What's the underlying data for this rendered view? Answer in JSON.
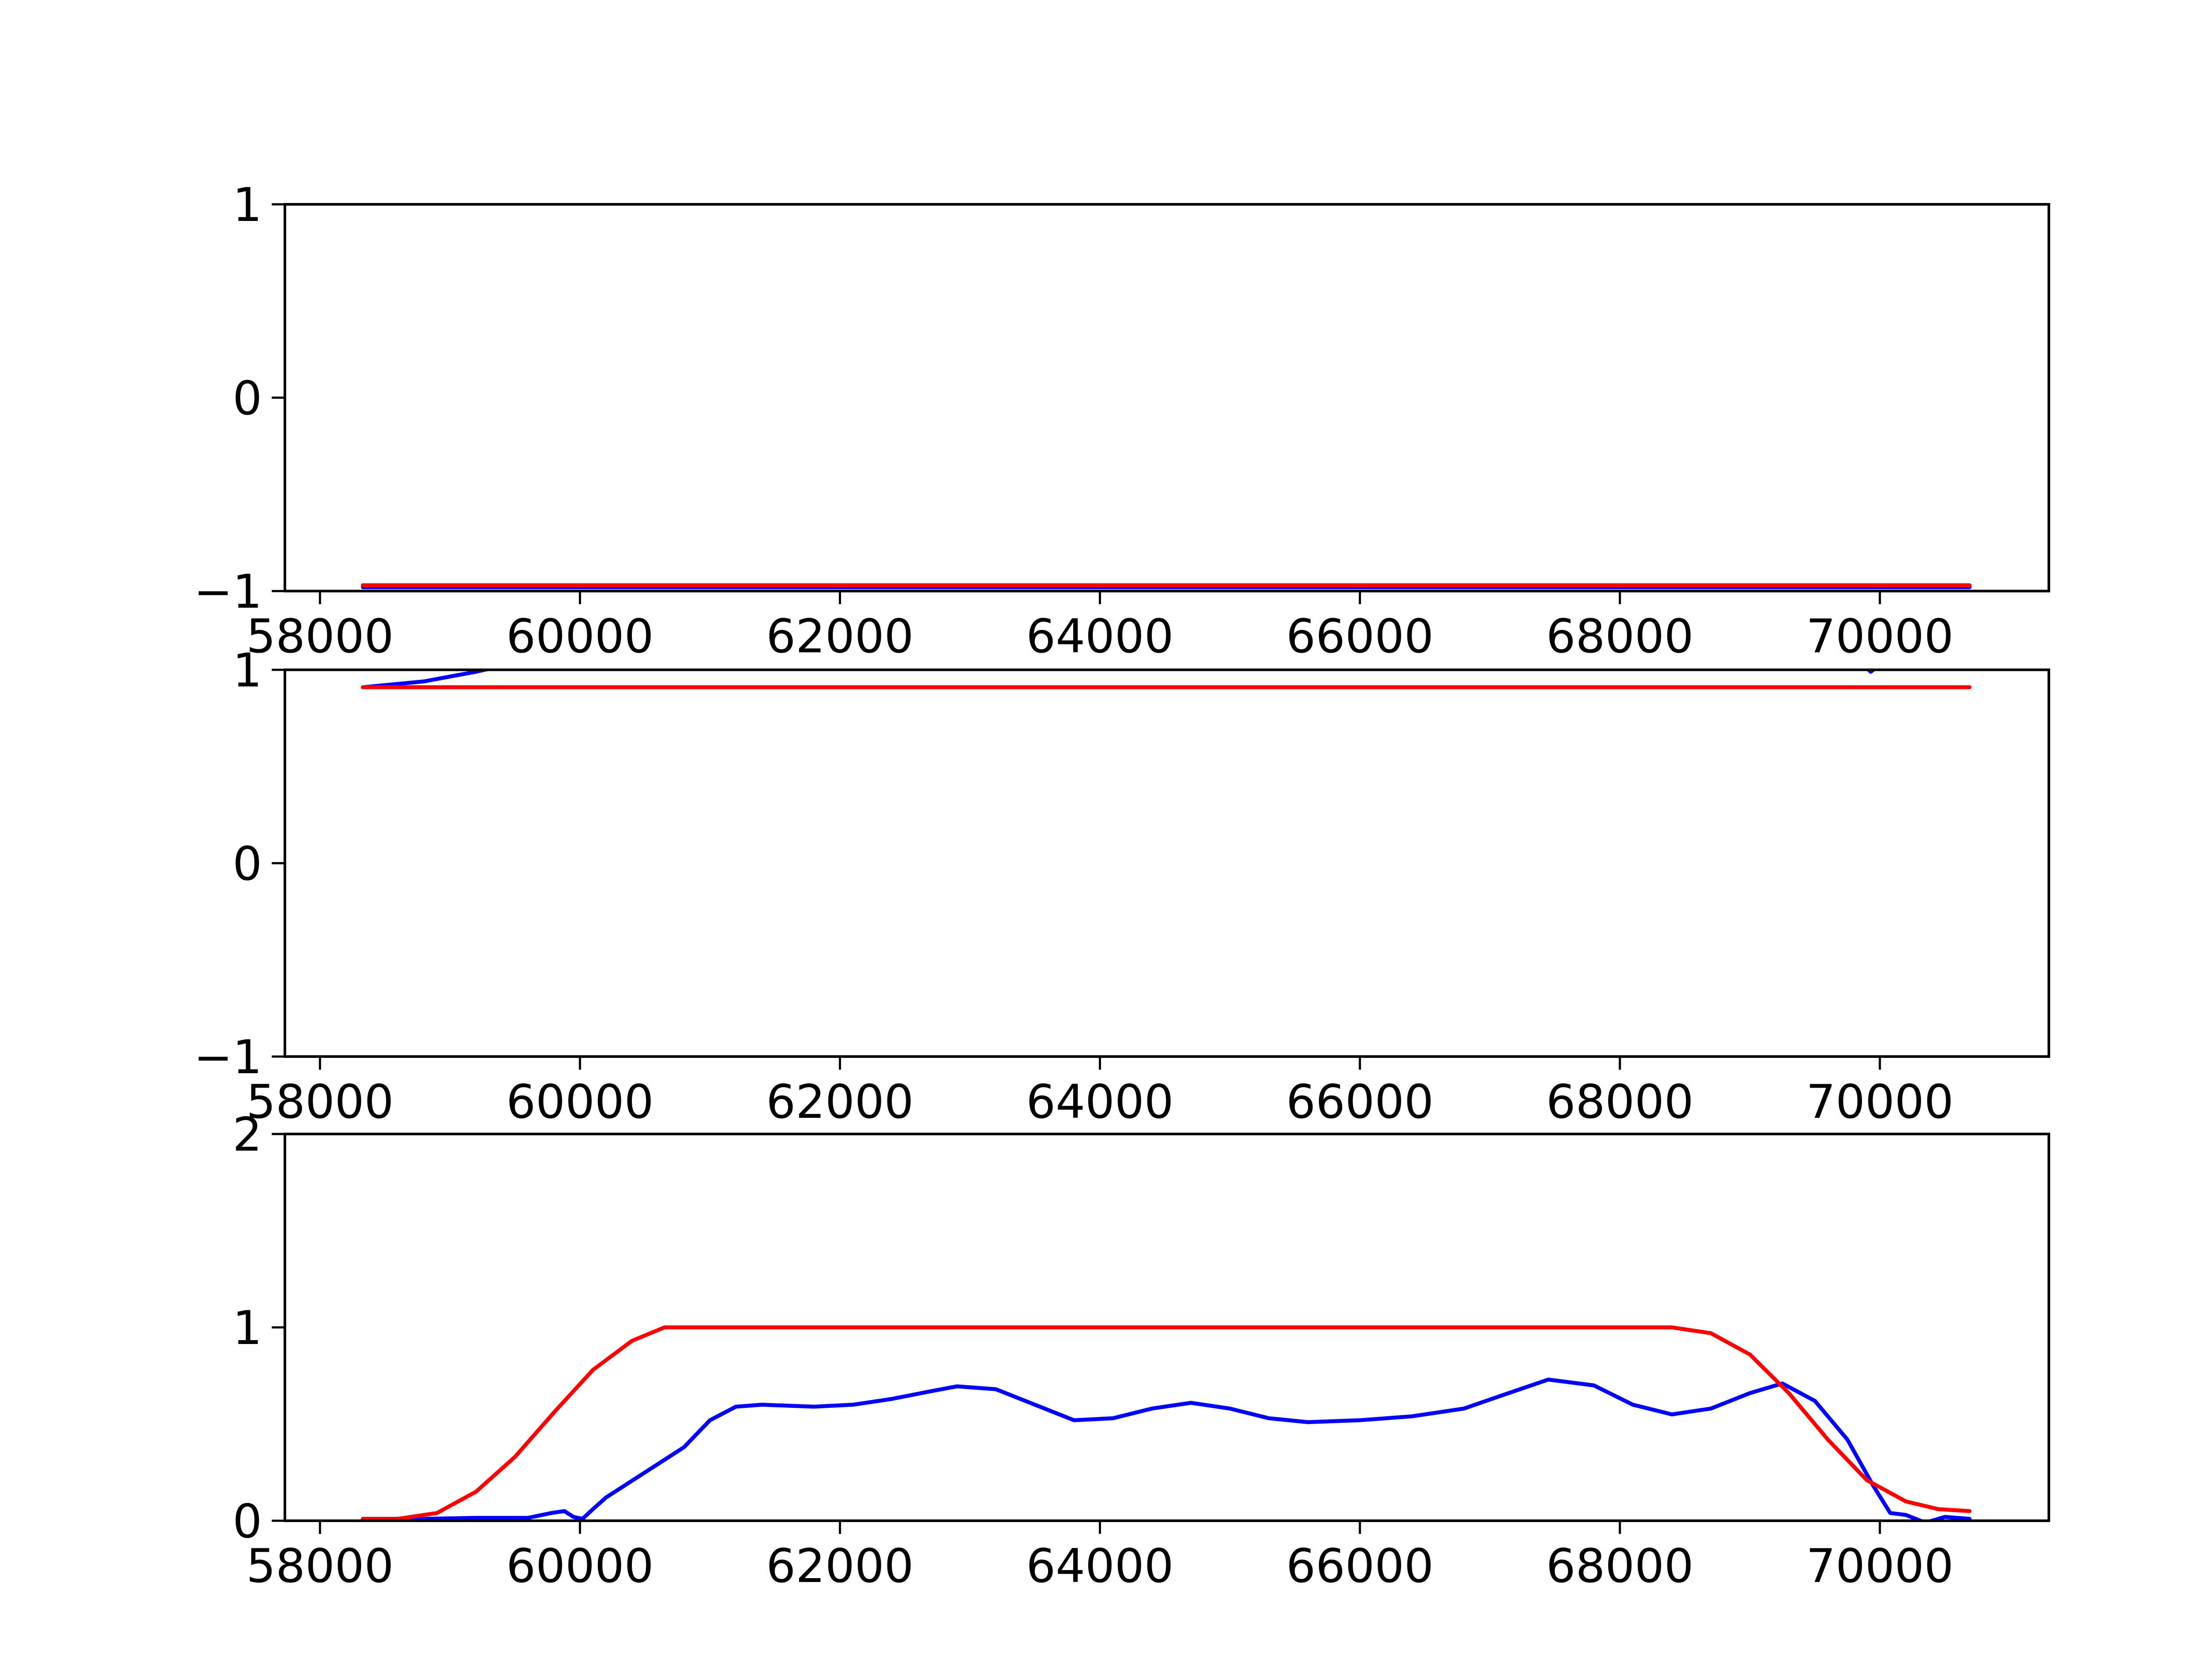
{
  "chart_data": [
    {
      "type": "line",
      "xlim": [
        57730,
        71300
      ],
      "ylim": [
        -1,
        1
      ],
      "xticks": [
        58000,
        60000,
        62000,
        64000,
        66000,
        68000,
        70000
      ],
      "xtick_labels": [
        "58000",
        "60000",
        "62000",
        "64000",
        "66000",
        "68000",
        "70000"
      ],
      "yticks": [
        -1,
        0,
        1
      ],
      "ytick_labels": [
        "−1",
        "0",
        "1"
      ],
      "grid": false,
      "series": [
        {
          "color": "#0000ff",
          "points": [
            [
              58330,
              -0.98
            ],
            [
              58700,
              -0.98
            ],
            [
              59100,
              -0.98
            ],
            [
              70690,
              -0.98
            ]
          ]
        },
        {
          "color": "#ff0000",
          "points": [
            [
              58330,
              -0.97
            ],
            [
              70690,
              -0.97
            ]
          ]
        }
      ]
    },
    {
      "type": "line",
      "xlim": [
        57730,
        71300
      ],
      "ylim": [
        -1,
        1
      ],
      "xticks": [
        58000,
        60000,
        62000,
        64000,
        66000,
        68000,
        70000
      ],
      "xtick_labels": [
        "58000",
        "60000",
        "62000",
        "64000",
        "66000",
        "68000",
        "70000"
      ],
      "yticks": [
        -1,
        0,
        1
      ],
      "ytick_labels": [
        "−1",
        "0",
        "1"
      ],
      "grid": false,
      "series": [
        {
          "color": "#0000ff",
          "points": [
            [
              58330,
              0.91
            ],
            [
              58800,
              0.94
            ],
            [
              59200,
              0.99
            ],
            [
              59400,
              1.02
            ]
          ]
        },
        {
          "color": "#0000ff",
          "points": [
            [
              69880,
              1.02
            ],
            [
              69930,
              0.99
            ],
            [
              69990,
              1.02
            ]
          ]
        },
        {
          "color": "#ff0000",
          "points": [
            [
              58330,
              0.91
            ],
            [
              70690,
              0.91
            ]
          ]
        }
      ]
    },
    {
      "type": "line",
      "xlim": [
        57730,
        71300
      ],
      "ylim": [
        0,
        2
      ],
      "xticks": [
        58000,
        60000,
        62000,
        64000,
        66000,
        68000,
        70000
      ],
      "xtick_labels": [
        "58000",
        "60000",
        "62000",
        "64000",
        "66000",
        "68000",
        "70000"
      ],
      "yticks": [
        0,
        1,
        2
      ],
      "ytick_labels": [
        "0",
        "1",
        "2"
      ],
      "grid": false,
      "series": [
        {
          "color": "#0000ff",
          "points": [
            [
              58330,
              0.01
            ],
            [
              58800,
              0.01
            ],
            [
              59200,
              0.015
            ],
            [
              59600,
              0.015
            ],
            [
              59780,
              0.04
            ],
            [
              59880,
              0.05
            ],
            [
              59950,
              0.02
            ],
            [
              60020,
              0.01
            ],
            [
              60100,
              0.06
            ],
            [
              60200,
              0.12
            ],
            [
              60500,
              0.25
            ],
            [
              60800,
              0.38
            ],
            [
              61000,
              0.52
            ],
            [
              61200,
              0.59
            ],
            [
              61400,
              0.6
            ],
            [
              61800,
              0.59
            ],
            [
              62100,
              0.6
            ],
            [
              62400,
              0.63
            ],
            [
              62700,
              0.67
            ],
            [
              62900,
              0.695
            ],
            [
              63200,
              0.68
            ],
            [
              63500,
              0.6
            ],
            [
              63800,
              0.52
            ],
            [
              64100,
              0.53
            ],
            [
              64400,
              0.58
            ],
            [
              64700,
              0.61
            ],
            [
              65000,
              0.58
            ],
            [
              65300,
              0.53
            ],
            [
              65600,
              0.51
            ],
            [
              66000,
              0.52
            ],
            [
              66400,
              0.54
            ],
            [
              66800,
              0.58
            ],
            [
              67100,
              0.65
            ],
            [
              67450,
              0.73
            ],
            [
              67800,
              0.7
            ],
            [
              68100,
              0.6
            ],
            [
              68400,
              0.55
            ],
            [
              68700,
              0.58
            ],
            [
              69000,
              0.66
            ],
            [
              69250,
              0.71
            ],
            [
              69500,
              0.62
            ],
            [
              69750,
              0.42
            ],
            [
              69950,
              0.18
            ],
            [
              70080,
              0.04
            ],
            [
              70200,
              0.03
            ],
            [
              70350,
              -0.01
            ],
            [
              70500,
              0.02
            ],
            [
              70690,
              0.01
            ]
          ]
        },
        {
          "color": "#ff0000",
          "points": [
            [
              58330,
              0.01
            ],
            [
              58600,
              0.01
            ],
            [
              58900,
              0.04
            ],
            [
              59200,
              0.15
            ],
            [
              59500,
              0.33
            ],
            [
              59800,
              0.56
            ],
            [
              60100,
              0.78
            ],
            [
              60400,
              0.93
            ],
            [
              60650,
              1.0
            ],
            [
              61000,
              1.0
            ],
            [
              68400,
              1.0
            ],
            [
              68700,
              0.97
            ],
            [
              69000,
              0.86
            ],
            [
              69300,
              0.66
            ],
            [
              69600,
              0.42
            ],
            [
              69900,
              0.21
            ],
            [
              70200,
              0.1
            ],
            [
              70450,
              0.06
            ],
            [
              70690,
              0.05
            ]
          ]
        }
      ]
    }
  ]
}
